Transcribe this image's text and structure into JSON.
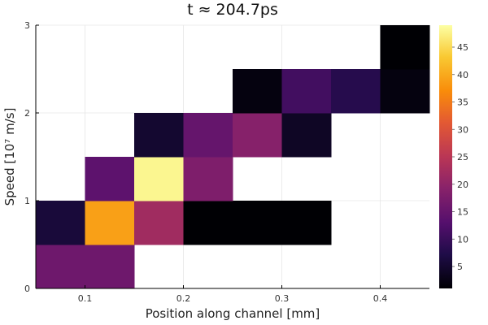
{
  "chart_data": {
    "type": "heatmap",
    "title": "t ≈ 204.7ps",
    "xlabel": "Position along channel [mm]",
    "ylabel": "Speed [10⁷ m/s]",
    "xlim": [
      0.05,
      0.45
    ],
    "ylim": [
      0,
      3
    ],
    "x_ticks": [
      0.1,
      0.2,
      0.3,
      0.4
    ],
    "x_tick_labels": [
      "0.1",
      "0.2",
      "0.3",
      "0.4"
    ],
    "y_ticks": [
      0,
      1,
      2,
      3
    ],
    "y_tick_labels": [
      "0",
      "1",
      "2",
      "3"
    ],
    "grid": true,
    "colormap": "inferno",
    "colorbar": {
      "min": 1,
      "max": 49,
      "ticks": [
        5,
        10,
        15,
        20,
        25,
        30,
        35,
        40,
        45
      ],
      "tick_labels": [
        "5",
        "10",
        "15",
        "20",
        "25",
        "30",
        "35",
        "40",
        "45"
      ]
    },
    "cells": [
      {
        "x0": 0.05,
        "x1": 0.1,
        "y0": 0.0,
        "y1": 0.5,
        "value": 16
      },
      {
        "x0": 0.1,
        "x1": 0.15,
        "y0": 0.0,
        "y1": 0.5,
        "value": 16
      },
      {
        "x0": 0.05,
        "x1": 0.1,
        "y0": 0.5,
        "y1": 1.0,
        "value": 6
      },
      {
        "x0": 0.1,
        "x1": 0.15,
        "y0": 0.5,
        "y1": 1.0,
        "value": 39
      },
      {
        "x0": 0.15,
        "x1": 0.2,
        "y0": 0.5,
        "y1": 1.0,
        "value": 22
      },
      {
        "x0": 0.2,
        "x1": 0.25,
        "y0": 0.5,
        "y1": 1.0,
        "value": 1
      },
      {
        "x0": 0.25,
        "x1": 0.3,
        "y0": 0.5,
        "y1": 1.0,
        "value": 1
      },
      {
        "x0": 0.3,
        "x1": 0.35,
        "y0": 0.5,
        "y1": 1.0,
        "value": 1
      },
      {
        "x0": 0.1,
        "x1": 0.15,
        "y0": 1.0,
        "y1": 1.5,
        "value": 14
      },
      {
        "x0": 0.15,
        "x1": 0.2,
        "y0": 1.0,
        "y1": 1.5,
        "value": 48
      },
      {
        "x0": 0.2,
        "x1": 0.25,
        "y0": 1.0,
        "y1": 1.5,
        "value": 18
      },
      {
        "x0": 0.15,
        "x1": 0.2,
        "y0": 1.5,
        "y1": 2.0,
        "value": 5
      },
      {
        "x0": 0.2,
        "x1": 0.25,
        "y0": 1.5,
        "y1": 2.0,
        "value": 15
      },
      {
        "x0": 0.25,
        "x1": 0.3,
        "y0": 1.5,
        "y1": 2.0,
        "value": 19
      },
      {
        "x0": 0.3,
        "x1": 0.35,
        "y0": 1.5,
        "y1": 2.0,
        "value": 4
      },
      {
        "x0": 0.25,
        "x1": 0.3,
        "y0": 2.0,
        "y1": 2.5,
        "value": 2
      },
      {
        "x0": 0.3,
        "x1": 0.35,
        "y0": 2.0,
        "y1": 2.5,
        "value": 11
      },
      {
        "x0": 0.35,
        "x1": 0.4,
        "y0": 2.0,
        "y1": 2.5,
        "value": 8
      },
      {
        "x0": 0.4,
        "x1": 0.45,
        "y0": 2.0,
        "y1": 2.5,
        "value": 2
      },
      {
        "x0": 0.4,
        "x1": 0.45,
        "y0": 2.5,
        "y1": 3.0,
        "value": 1
      }
    ]
  }
}
